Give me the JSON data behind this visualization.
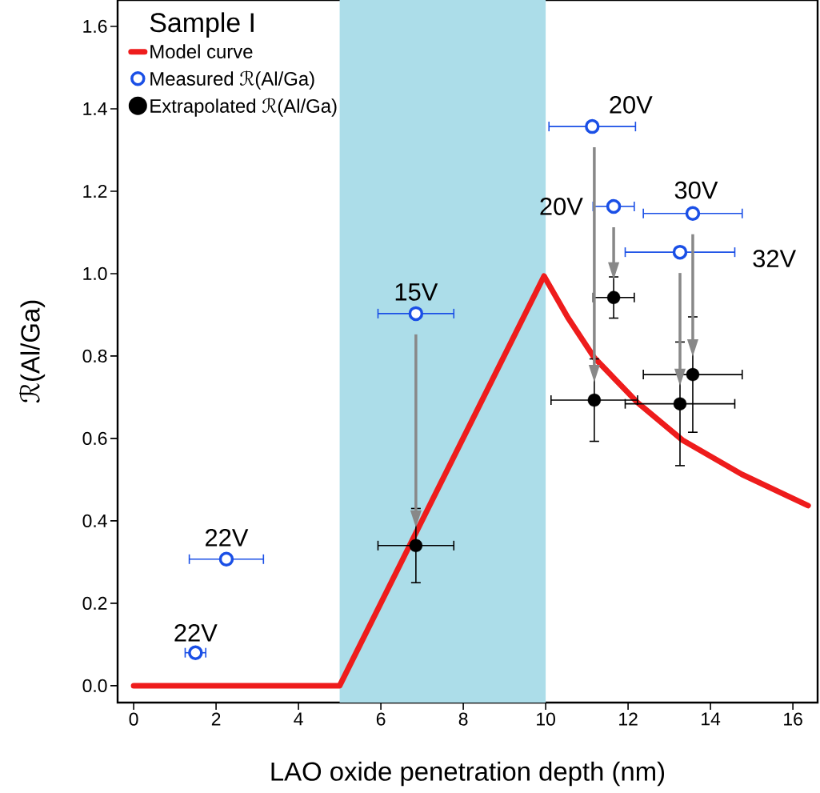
{
  "chart_data": {
    "type": "scatter",
    "xlabel": "LAO oxide penetration depth (nm)",
    "ylabel": "ℛ(Al/Ga)",
    "legend_title": "Sample I",
    "xlim": [
      -0.39,
      16.6
    ],
    "ylim": [
      -0.041,
      1.664
    ],
    "xticks": [
      0,
      2,
      4,
      6,
      8,
      10,
      12,
      14,
      16
    ],
    "yticks": [
      {
        "value": 0,
        "label": "0.0"
      },
      {
        "value": 0.2,
        "label": "0.2"
      },
      {
        "value": 0.4,
        "label": "0.4"
      },
      {
        "value": 0.6,
        "label": "0.6"
      },
      {
        "value": 0.8,
        "label": "0.8"
      },
      {
        "value": 1.0,
        "label": "1.0"
      },
      {
        "value": 1.2,
        "label": "1.2"
      },
      {
        "value": 1.4,
        "label": "1.4"
      },
      {
        "value": 1.6,
        "label": "1.6"
      }
    ],
    "legend": "top left",
    "grid": false,
    "bands": [
      {
        "axis": "x",
        "from": 5,
        "to": 10,
        "color": "#acdde9"
      }
    ],
    "series": [
      {
        "name": "Model curve",
        "type": "line",
        "color": "#ee1c1c",
        "line_style": "solid",
        "marker": "none",
        "x": [
          0,
          5,
          9.96,
          10.54,
          11.18,
          12.23,
          13.32,
          14.76,
          16.37
        ],
        "values": [
          0,
          0,
          0.994,
          0.893,
          0.796,
          0.687,
          0.596,
          0.513,
          0.437
        ]
      },
      {
        "name": "Measured ℛ(Al/Ga)",
        "color": "#1a4fe6",
        "marker": "circle",
        "x": [
          1.5,
          2.25,
          6.85,
          11.13,
          11.65,
          13.57,
          13.26
        ],
        "values": [
          0.08,
          0.307,
          0.903,
          1.357,
          1.163,
          1.146,
          1.052
        ],
        "xerrors": [
          0.25,
          0.9,
          0.92,
          1.05,
          0.5,
          1.2,
          1.33
        ]
      },
      {
        "name": "Extrapolated ℛ(Al/Ga)",
        "color": "#000000",
        "marker": "circle",
        "x": [
          null,
          null,
          6.85,
          11.18,
          11.65,
          13.57,
          13.26
        ],
        "values": [
          null,
          null,
          0.34,
          0.693,
          0.942,
          0.755,
          0.684
        ],
        "xerrors": [
          null,
          null,
          0.92,
          1.05,
          0.5,
          1.2,
          1.33
        ],
        "errors": [
          null,
          null,
          0.09,
          0.1,
          0.05,
          0.14,
          0.15
        ]
      }
    ],
    "annotations": [
      {
        "text": "22V",
        "x": 1.5,
        "y": 0.08
      },
      {
        "text": "22V",
        "x": 2.25,
        "y": 0.307
      },
      {
        "text": "15V",
        "x": 6.85,
        "y": 0.903
      },
      {
        "text": "20V",
        "x": 11.13,
        "y": 1.357
      },
      {
        "text": "20V",
        "x": 11.65,
        "y": 1.163
      },
      {
        "text": "30V",
        "x": 13.57,
        "y": 1.146
      },
      {
        "text": "32V",
        "x": 13.26,
        "y": 1.052
      }
    ]
  }
}
